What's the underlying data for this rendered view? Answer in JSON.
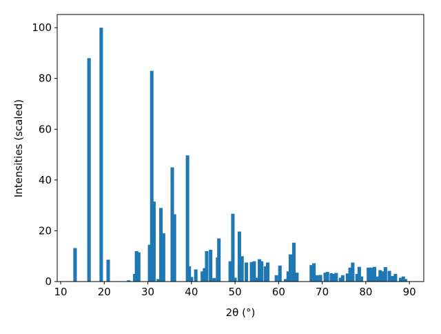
{
  "chart_data": {
    "type": "bar",
    "x_label": "2θ (°)",
    "y_label": "Intensities (scaled)",
    "color": "#1f77b4",
    "x": [
      13.3,
      16.5,
      19.3,
      20.9,
      25.6,
      27.0,
      27.4,
      27.9,
      30.4,
      30.9,
      31.4,
      32.4,
      33.0,
      33.6,
      35.6,
      36.1,
      39.1,
      39.5,
      40.0,
      41.0,
      42.5,
      43.0,
      43.5,
      44.4,
      45.2,
      46.0,
      46.3,
      48.9,
      49.5,
      50.0,
      51.0,
      51.6,
      52.6,
      53.8,
      54.4,
      55.0,
      55.6,
      56.1,
      57.0,
      57.5,
      59.5,
      60.3,
      61.6,
      62.2,
      62.7,
      63.5,
      64.2,
      67.5,
      68.1,
      68.8,
      69.6,
      70.7,
      71.2,
      72.1,
      72.5,
      73.2,
      74.2,
      74.7,
      75.8,
      76.4,
      77.0,
      78.0,
      78.5,
      79.0,
      80.6,
      81.2,
      82.0,
      82.8,
      83.3,
      83.8,
      84.5,
      85.4,
      86.1,
      86.8,
      88.0,
      88.6,
      89.1
    ],
    "values": [
      13.2,
      88,
      100,
      8.6,
      0.5,
      3,
      12,
      11.5,
      14.5,
      83,
      31.5,
      1,
      29,
      19,
      45,
      26.5,
      49.7,
      6,
      1.8,
      4.8,
      4,
      5.3,
      12,
      12.5,
      1.4,
      9.5,
      17,
      8,
      26.7,
      1.5,
      19.7,
      10,
      7.5,
      7.7,
      8,
      1.5,
      8.8,
      8,
      6,
      7.5,
      2.5,
      6.3,
      1,
      4,
      10.7,
      15.3,
      3.5,
      6.5,
      7.2,
      2.5,
      2.6,
      3.5,
      3.8,
      3.3,
      3,
      3.4,
      1.5,
      2.5,
      3.2,
      5.5,
      7.5,
      3,
      5.8,
      2,
      5.5,
      5.5,
      5.8,
      2,
      4.5,
      4,
      5.7,
      4.2,
      2.2,
      3,
      1.5,
      2,
      1
    ],
    "xlim": [
      9.2,
      93.3
    ],
    "xticks": [
      10,
      20,
      30,
      40,
      50,
      60,
      70,
      80,
      90
    ],
    "ylim": [
      0,
      105.2
    ],
    "yticks": [
      0,
      20,
      40,
      60,
      80,
      100
    ]
  }
}
